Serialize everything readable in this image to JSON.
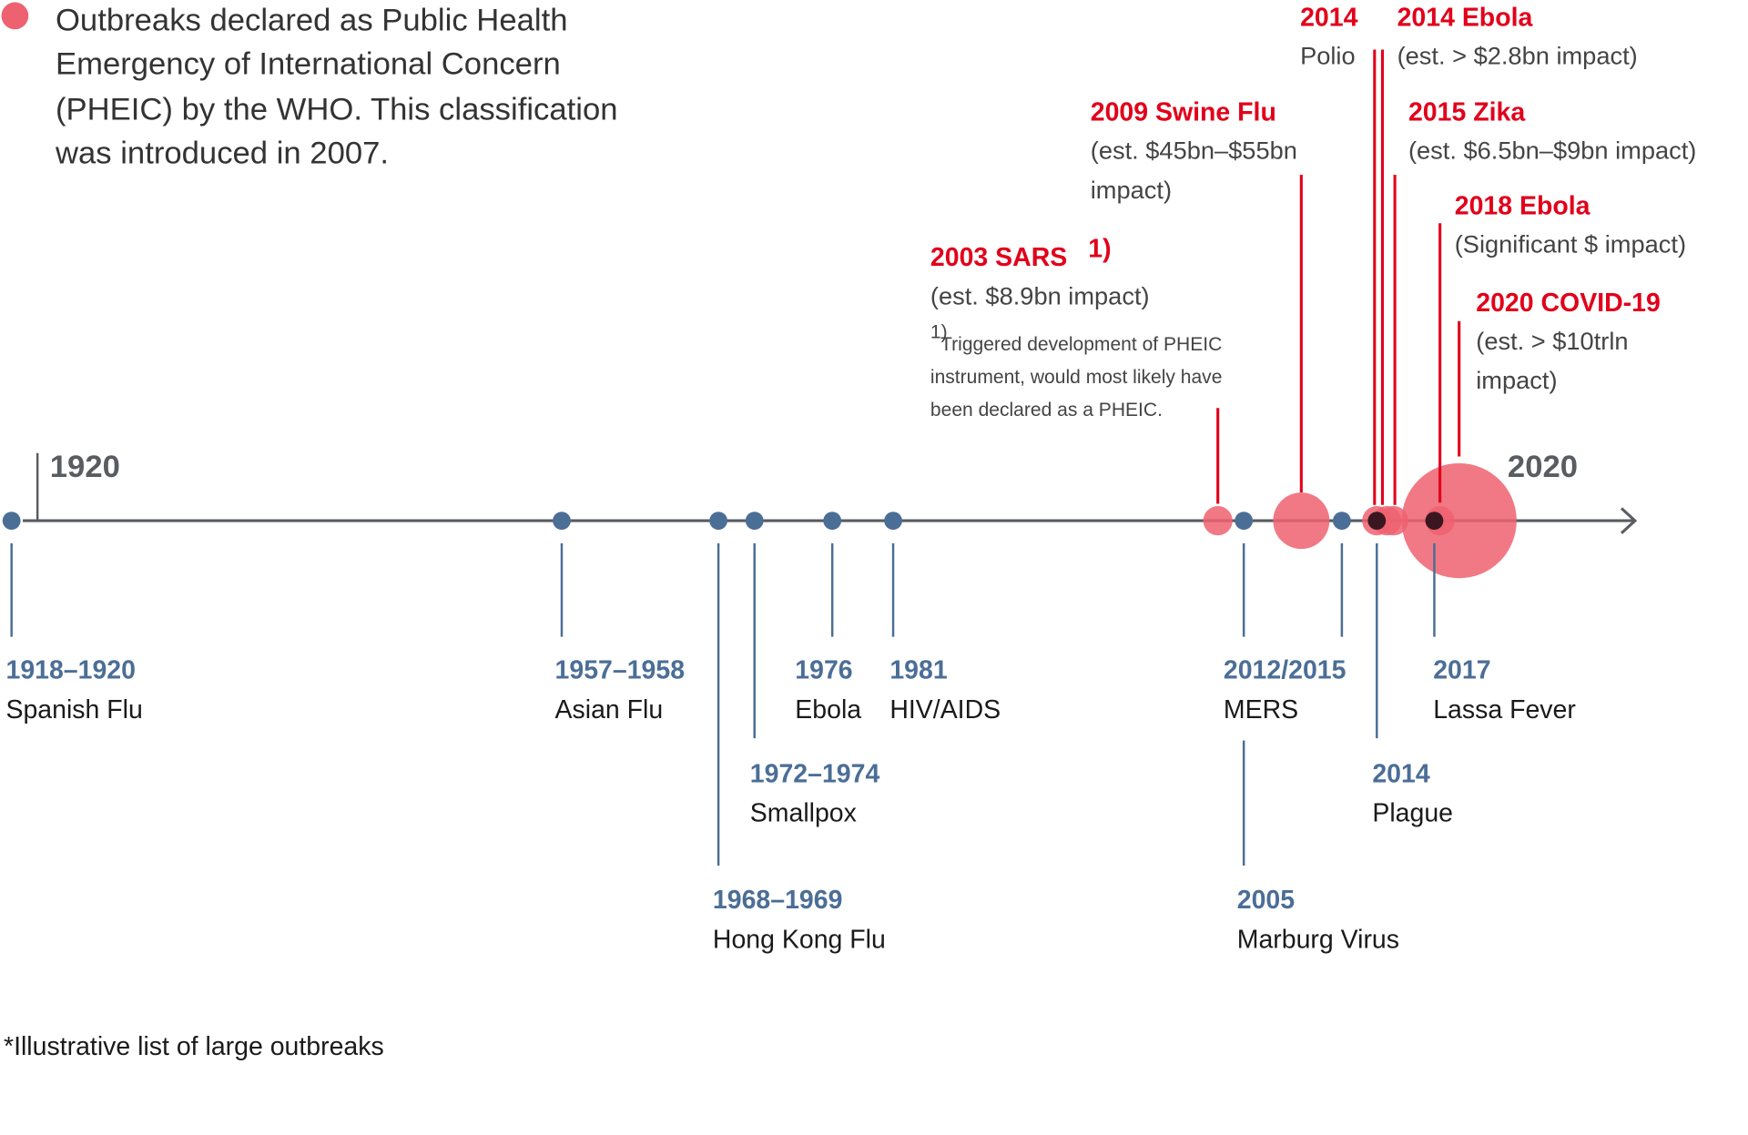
{
  "legend": {
    "lines": [
      "Outbreaks declared as Public Health",
      "Emergency of International Concern",
      "(PHEIC) by the WHO. This classification",
      "was introduced in 2007."
    ],
    "dot_color": "#ee6170"
  },
  "axis": {
    "start_label": "1920",
    "end_label": "2020"
  },
  "colors": {
    "blue": "#4b6e96",
    "red": "#e2001a",
    "red_fill": "#ee6170",
    "axis": "#595c61"
  },
  "footer": "*Illustrative list of large outbreaks",
  "chart_data": {
    "type": "timeline",
    "axis_range": [
      1918,
      2020
    ],
    "outbreaks": [
      {
        "year_label": "1918–1920",
        "name": "Spanish Flu"
      },
      {
        "year_label": "1957–1958",
        "name": "Asian Flu"
      },
      {
        "year_label": "1968–1969",
        "name": "Hong Kong Flu"
      },
      {
        "year_label": "1972–1974",
        "name": "Smallpox"
      },
      {
        "year_label": "1976",
        "name": "Ebola"
      },
      {
        "year_label": "1981",
        "name": "HIV/AIDS"
      },
      {
        "year_label": "2005",
        "name": "Marburg Virus"
      },
      {
        "year_label": "2012/2015",
        "name": "MERS"
      },
      {
        "year_label": "2014",
        "name": "Plague"
      },
      {
        "year_label": "2017",
        "name": "Lassa Fever"
      }
    ],
    "pheic": [
      {
        "title": "2003 SARS",
        "sup": "1)",
        "impact": [
          "(est. $8.9bn impact)"
        ]
      },
      {
        "title": "2009 Swine Flu",
        "impact": [
          "(est. $45bn–$55bn",
          "impact)"
        ]
      },
      {
        "title": "2014",
        "impact": [
          "Polio"
        ]
      },
      {
        "title": "2014 Ebola",
        "impact": [
          "(est. > $2.8bn impact)"
        ]
      },
      {
        "title": "2015 Zika",
        "impact": [
          "(est. $6.5bn–$9bn impact)"
        ]
      },
      {
        "title": "2018 Ebola",
        "impact": [
          "(Significant $ impact)"
        ]
      },
      {
        "title": "2020 COVID-19",
        "impact": [
          "(est. > $10trln",
          "impact)"
        ]
      }
    ],
    "footnote": {
      "marker": "1)",
      "lines": [
        "Triggered development of PHEIC",
        "instrument, would most likely have",
        "been declared as a PHEIC."
      ]
    }
  }
}
